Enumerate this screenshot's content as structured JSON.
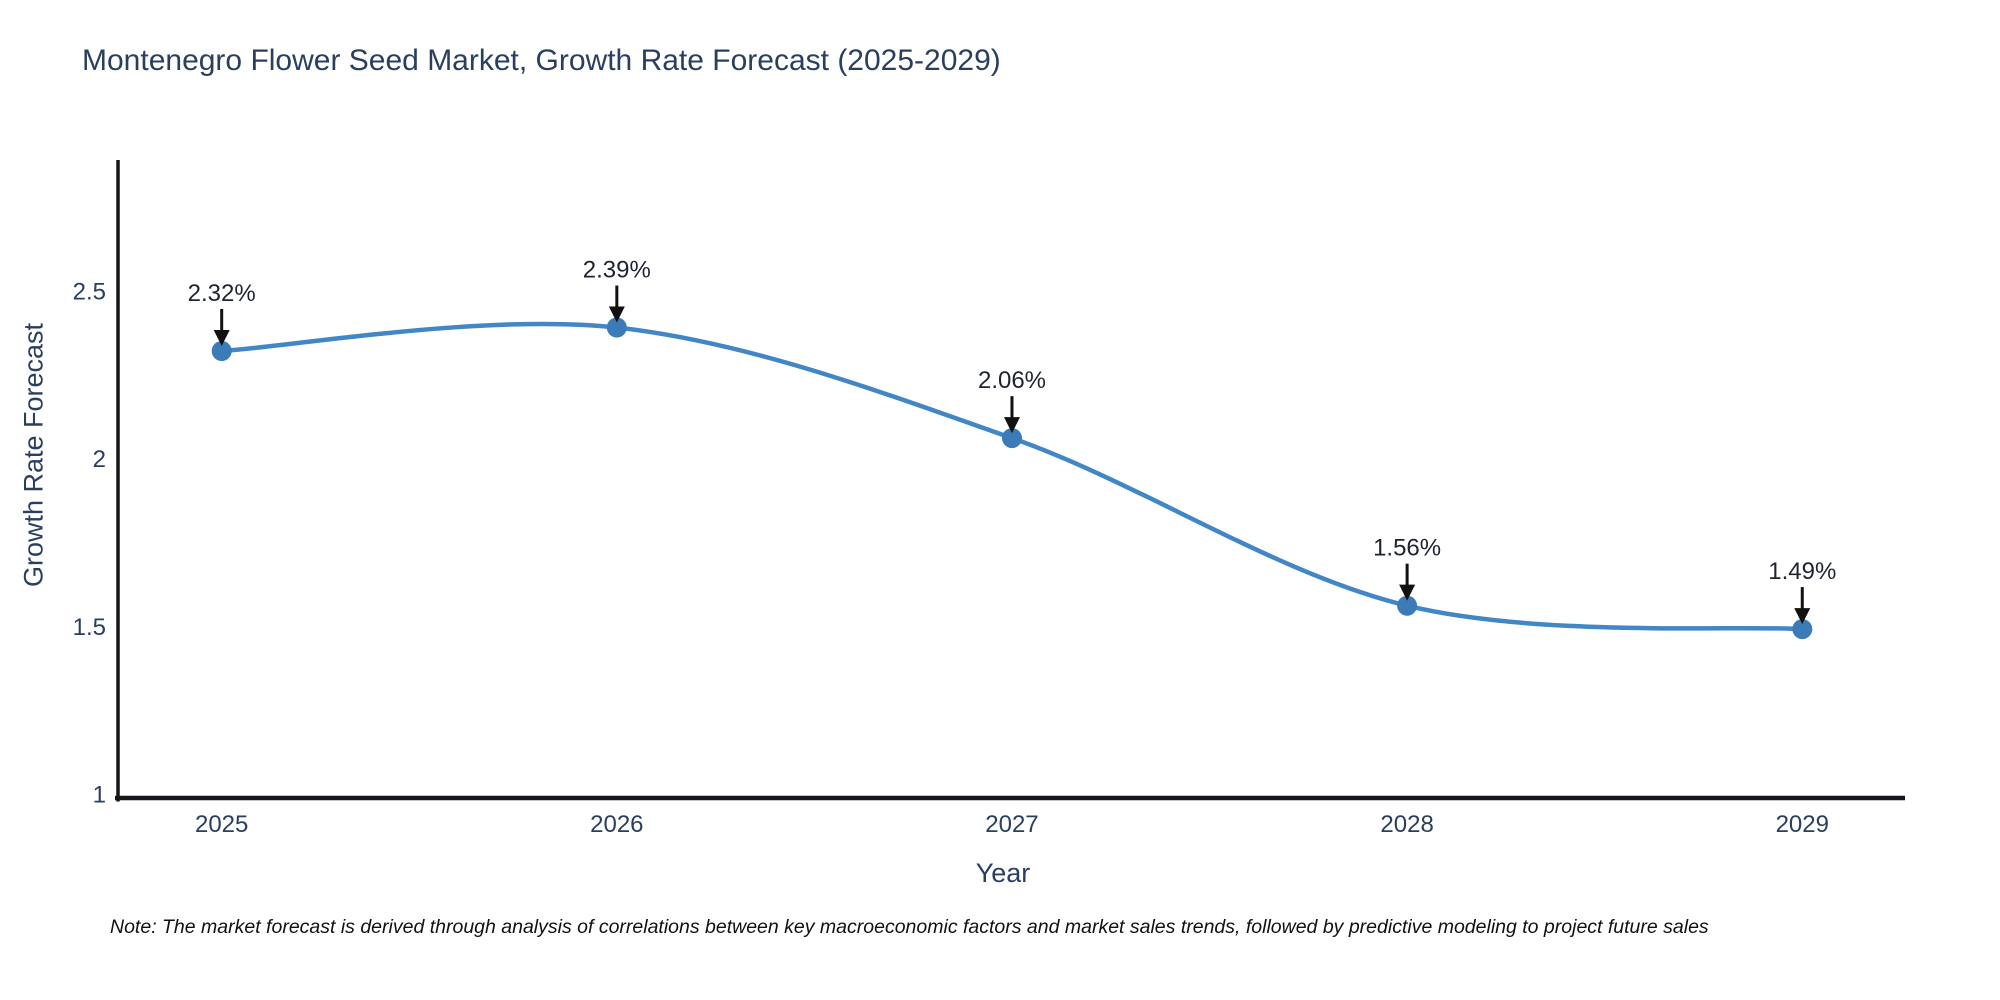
{
  "chart_data": {
    "type": "line",
    "title": "Montenegro Flower Seed Market, Growth Rate Forecast (2025-2029)",
    "xlabel": "Year",
    "ylabel": "Growth Rate Forecast",
    "x": [
      2025,
      2026,
      2027,
      2028,
      2029
    ],
    "x_tick_labels": [
      "2025",
      "2026",
      "2027",
      "2028",
      "2029"
    ],
    "values": [
      2.32,
      2.39,
      2.06,
      1.56,
      1.49
    ],
    "point_labels": [
      "2.32%",
      "2.39%",
      "2.06%",
      "1.56%",
      "1.49%"
    ],
    "y_ticks": [
      1,
      1.5,
      2,
      2.5
    ],
    "y_tick_labels": [
      "1",
      "1.5",
      "2",
      "2.5"
    ],
    "ylim": [
      0.98,
      2.89
    ],
    "xlim": [
      2024.73,
      2029.26
    ],
    "line_shape": "spline",
    "grid": false,
    "legend_position": "none",
    "colors": {
      "line": "#4186c5",
      "marker": "#3a7bb8",
      "axis": "#14161c",
      "heading_text": "#2a3f5f",
      "annotation_text": "#1d2430",
      "annotation_arrow": "#111111"
    }
  },
  "note": {
    "text": "Note: The market forecast is derived through analysis of correlations between key macroeconomic factors and market sales trends, followed by predictive modeling to project future sales"
  }
}
